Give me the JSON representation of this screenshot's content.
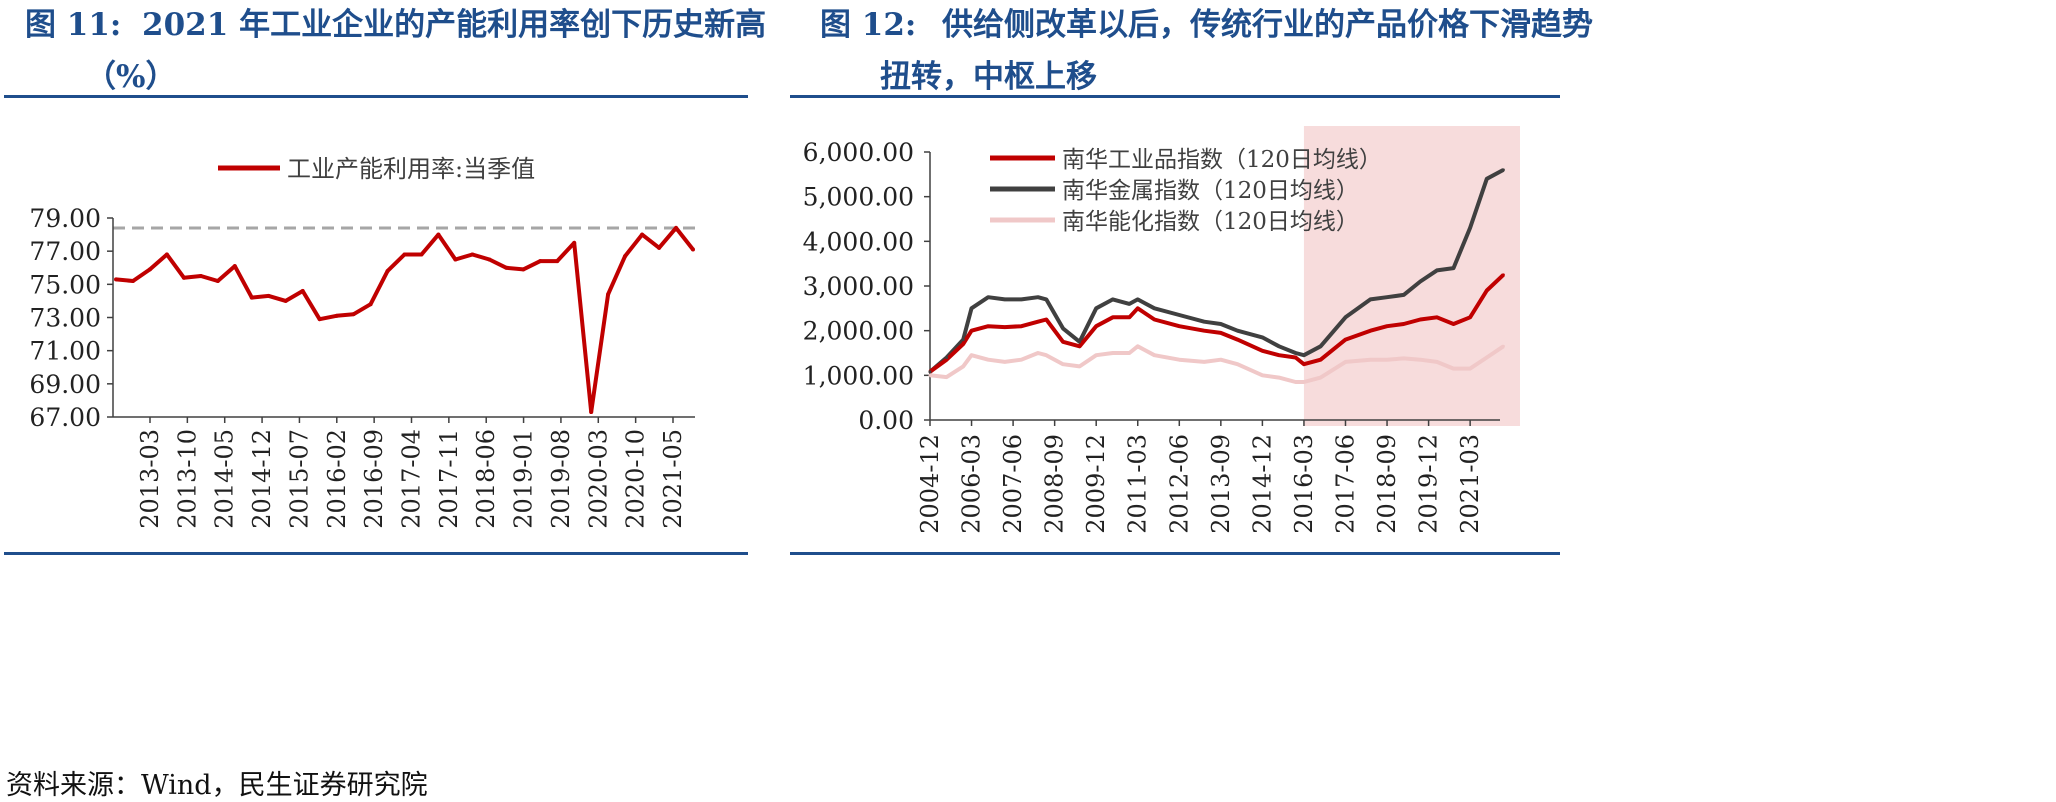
{
  "figures": [
    {
      "number": "图 11:",
      "title_line1": "2021 年工业企业的产能利用率创下历史新高",
      "title_line2": "（%）"
    },
    {
      "number": "图 12:",
      "title_line1": "供给侧改革以后，传统行业的产品价格下滑趋势",
      "title_line2": "扭转，中枢上移"
    }
  ],
  "source": "资料来源：Wind，民生证券研究院",
  "colors": {
    "title": "#1f4e8c",
    "red": "#c00000",
    "dark": "#404040",
    "pink": "#f0c8c8",
    "shade": "#f7dcdc",
    "dashed": "#a6a6a6"
  },
  "chart_data": [
    {
      "type": "line",
      "title": "2021 年工业企业的产能利用率创下历史新高（%）",
      "legend": [
        "工业产能利用率:当季值"
      ],
      "legend_position": "top-center",
      "ylim": [
        67,
        79
      ],
      "yticks": [
        "79.00",
        "77.00",
        "75.00",
        "73.00",
        "71.00",
        "69.00",
        "67.00"
      ],
      "xtick_labels": [
        "2013-03",
        "2013-10",
        "2014-05",
        "2014-12",
        "2015-07",
        "2016-02",
        "2016-09",
        "2017-04",
        "2017-11",
        "2018-06",
        "2019-01",
        "2019-08",
        "2020-03",
        "2020-10",
        "2021-05"
      ],
      "reference_line": 78.4,
      "series": [
        {
          "name": "工业产能利用率:当季值",
          "x": [
            "2013Q1",
            "2013Q2",
            "2013Q3",
            "2013Q4",
            "2014Q1",
            "2014Q2",
            "2014Q3",
            "2014Q4",
            "2015Q1",
            "2015Q2",
            "2015Q3",
            "2015Q4",
            "2016Q1",
            "2016Q2",
            "2016Q3",
            "2016Q4",
            "2017Q1",
            "2017Q2",
            "2017Q3",
            "2017Q4",
            "2018Q1",
            "2018Q2",
            "2018Q3",
            "2018Q4",
            "2019Q1",
            "2019Q2",
            "2019Q3",
            "2019Q4",
            "2020Q1",
            "2020Q2",
            "2020Q3",
            "2020Q4",
            "2021Q1",
            "2021Q2",
            "2021Q3"
          ],
          "values": [
            75.3,
            75.2,
            75.9,
            76.8,
            75.4,
            75.5,
            75.2,
            76.1,
            74.2,
            74.3,
            74.0,
            74.6,
            72.9,
            73.1,
            73.2,
            73.8,
            75.8,
            76.8,
            76.8,
            78.0,
            76.5,
            76.8,
            76.5,
            76.0,
            75.9,
            76.4,
            76.4,
            77.5,
            67.3,
            74.4,
            76.7,
            78.0,
            77.2,
            78.4,
            77.1
          ]
        }
      ]
    },
    {
      "type": "line",
      "title": "供给侧改革以后，传统行业的产品价格下滑趋势扭转，中枢上移",
      "legend_position": "top-left",
      "ylim": [
        0,
        6000
      ],
      "yticks": [
        "6,000.00",
        "5,000.00",
        "4,000.00",
        "3,000.00",
        "2,000.00",
        "1,000.00",
        "0.00"
      ],
      "xtick_labels": [
        "2004-12",
        "2006-03",
        "2007-06",
        "2008-09",
        "2009-12",
        "2011-03",
        "2012-06",
        "2013-09",
        "2014-12",
        "2016-03",
        "2017-06",
        "2018-09",
        "2019-12",
        "2021-03"
      ],
      "shaded_region": [
        "2016-03",
        "2022-09"
      ],
      "series": [
        {
          "name": "南华工业品指数（120日均线）",
          "color": "#c00000",
          "x": [
            "2004-12",
            "2005-06",
            "2005-12",
            "2006-03",
            "2006-09",
            "2007-03",
            "2007-09",
            "2008-03",
            "2008-06",
            "2008-12",
            "2009-06",
            "2009-12",
            "2010-06",
            "2010-12",
            "2011-03",
            "2011-09",
            "2012-06",
            "2013-03",
            "2013-09",
            "2014-03",
            "2014-12",
            "2015-06",
            "2015-12",
            "2016-03",
            "2016-09",
            "2017-06",
            "2018-03",
            "2018-09",
            "2019-03",
            "2019-09",
            "2020-03",
            "2020-09",
            "2021-03",
            "2021-09",
            "2022-03"
          ],
          "values": [
            1080,
            1350,
            1700,
            2000,
            2100,
            2080,
            2100,
            2200,
            2250,
            1750,
            1650,
            2100,
            2300,
            2300,
            2500,
            2250,
            2100,
            2000,
            1950,
            1800,
            1550,
            1450,
            1400,
            1250,
            1350,
            1800,
            2000,
            2100,
            2150,
            2250,
            2300,
            2150,
            2300,
            2900,
            3250
          ]
        },
        {
          "name": "南华金属指数（120日均线）",
          "color": "#404040",
          "x": [
            "2004-12",
            "2005-06",
            "2005-12",
            "2006-03",
            "2006-09",
            "2007-03",
            "2007-09",
            "2008-03",
            "2008-06",
            "2008-12",
            "2009-06",
            "2009-12",
            "2010-06",
            "2010-12",
            "2011-03",
            "2011-09",
            "2012-06",
            "2013-03",
            "2013-09",
            "2014-03",
            "2014-12",
            "2015-06",
            "2015-12",
            "2016-03",
            "2016-09",
            "2017-06",
            "2018-03",
            "2018-09",
            "2019-03",
            "2019-09",
            "2020-03",
            "2020-09",
            "2021-03",
            "2021-09",
            "2022-03"
          ],
          "values": [
            1080,
            1400,
            1800,
            2500,
            2750,
            2700,
            2700,
            2750,
            2700,
            2050,
            1750,
            2500,
            2700,
            2600,
            2700,
            2500,
            2350,
            2200,
            2150,
            2000,
            1850,
            1650,
            1500,
            1450,
            1650,
            2300,
            2700,
            2750,
            2800,
            3100,
            3350,
            3400,
            4300,
            5400,
            5600
          ]
        },
        {
          "name": "南华能化指数（120日均线）",
          "color": "#f0c8c8",
          "x": [
            "2004-12",
            "2005-06",
            "2005-12",
            "2006-03",
            "2006-09",
            "2007-03",
            "2007-09",
            "2008-03",
            "2008-06",
            "2008-12",
            "2009-06",
            "2009-12",
            "2010-06",
            "2010-12",
            "2011-03",
            "2011-09",
            "2012-06",
            "2013-03",
            "2013-09",
            "2014-03",
            "2014-12",
            "2015-06",
            "2015-12",
            "2016-03",
            "2016-09",
            "2017-06",
            "2018-03",
            "2018-09",
            "2019-03",
            "2019-09",
            "2020-03",
            "2020-09",
            "2021-03",
            "2021-09",
            "2022-03"
          ],
          "values": [
            1000,
            960,
            1200,
            1450,
            1350,
            1300,
            1350,
            1500,
            1450,
            1250,
            1200,
            1450,
            1500,
            1500,
            1650,
            1450,
            1350,
            1300,
            1350,
            1250,
            1000,
            950,
            850,
            850,
            950,
            1300,
            1350,
            1350,
            1380,
            1350,
            1300,
            1150,
            1150,
            1400,
            1650
          ]
        }
      ]
    }
  ]
}
